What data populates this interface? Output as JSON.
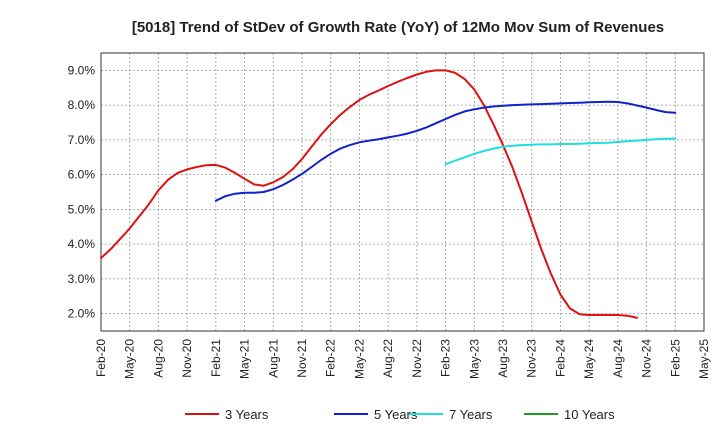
{
  "chart_data": {
    "type": "line",
    "title": "[5018]  Trend of StDev of Growth Rate (YoY) of 12Mo Mov Sum of Revenues",
    "xlabel": "",
    "ylabel": "",
    "x_tick_labels": [
      "Feb-20",
      "May-20",
      "Aug-20",
      "Nov-20",
      "Feb-21",
      "May-21",
      "Aug-21",
      "Nov-21",
      "Feb-22",
      "May-22",
      "Aug-22",
      "Nov-22",
      "Feb-23",
      "May-23",
      "Aug-23",
      "Nov-23",
      "Feb-24",
      "May-24",
      "Aug-24",
      "Nov-24",
      "Feb-25",
      "May-25"
    ],
    "y_tick_labels": [
      "2.0%",
      "3.0%",
      "4.0%",
      "5.0%",
      "6.0%",
      "7.0%",
      "8.0%",
      "9.0%"
    ],
    "y_tick_values": [
      2,
      3,
      4,
      5,
      6,
      7,
      8,
      9
    ],
    "ylim": [
      1.5,
      9.5
    ],
    "x_range_months": [
      0,
      63
    ],
    "grid": true,
    "legend_position": "bottom",
    "series": [
      {
        "name": "3 Years",
        "color": "#dd1111",
        "x": [
          0,
          1,
          2,
          3,
          4,
          5,
          6,
          7,
          8,
          9,
          10,
          11,
          12,
          13,
          14,
          15,
          16,
          17,
          18,
          19,
          20,
          21,
          22,
          23,
          24,
          25,
          26,
          27,
          28,
          29,
          30,
          31,
          32,
          33,
          34,
          35,
          36,
          37,
          38,
          39,
          40,
          41,
          42,
          43,
          44,
          45,
          46,
          47,
          48,
          49,
          50,
          51,
          52,
          53,
          54,
          55,
          56,
          57,
          58,
          59,
          60
        ],
        "values": [
          3.6,
          3.85,
          4.15,
          4.45,
          4.8,
          5.15,
          5.55,
          5.85,
          6.05,
          6.15,
          6.22,
          6.27,
          6.28,
          6.2,
          6.05,
          5.88,
          5.72,
          5.68,
          5.78,
          5.93,
          6.15,
          6.45,
          6.8,
          7.15,
          7.45,
          7.72,
          7.95,
          8.15,
          8.3,
          8.42,
          8.55,
          8.67,
          8.78,
          8.88,
          8.96,
          9.0,
          9.0,
          8.93,
          8.75,
          8.45,
          8.0,
          7.45,
          6.85,
          6.2,
          5.45,
          4.65,
          3.85,
          3.15,
          2.55,
          2.15,
          1.98,
          1.96,
          1.96,
          1.96,
          1.96,
          1.94,
          1.88,
          null,
          null,
          null,
          null
        ]
      },
      {
        "name": "5 Years",
        "color": "#1122cc",
        "x": [
          12,
          13,
          14,
          15,
          16,
          17,
          18,
          19,
          20,
          21,
          22,
          23,
          24,
          25,
          26,
          27,
          28,
          29,
          30,
          31,
          32,
          33,
          34,
          35,
          36,
          37,
          38,
          39,
          40,
          41,
          42,
          43,
          44,
          45,
          46,
          47,
          48,
          49,
          50,
          51,
          52,
          53,
          54,
          55,
          56,
          57,
          58,
          59,
          60
        ],
        "values": [
          5.25,
          5.38,
          5.45,
          5.48,
          5.48,
          5.5,
          5.58,
          5.7,
          5.85,
          6.02,
          6.22,
          6.42,
          6.6,
          6.75,
          6.85,
          6.93,
          6.98,
          7.02,
          7.07,
          7.12,
          7.18,
          7.26,
          7.36,
          7.48,
          7.6,
          7.72,
          7.82,
          7.88,
          7.93,
          7.96,
          7.98,
          8.0,
          8.01,
          8.02,
          8.03,
          8.04,
          8.05,
          8.06,
          8.07,
          8.08,
          8.09,
          8.1,
          8.09,
          8.05,
          7.99,
          7.93,
          7.86,
          7.8,
          7.78
        ]
      },
      {
        "name": "7 Years",
        "color": "#22dddd",
        "x": [
          36,
          37,
          38,
          39,
          40,
          41,
          42,
          43,
          44,
          45,
          46,
          47,
          48,
          49,
          50,
          51,
          52,
          53,
          54,
          55,
          56,
          57,
          58,
          59,
          60
        ],
        "values": [
          6.3,
          6.4,
          6.5,
          6.6,
          6.68,
          6.75,
          6.8,
          6.83,
          6.85,
          6.86,
          6.87,
          6.87,
          6.88,
          6.88,
          6.89,
          6.9,
          6.91,
          6.92,
          6.94,
          6.96,
          6.98,
          7.0,
          7.02,
          7.03,
          7.04
        ]
      },
      {
        "name": "10 Years",
        "color": "#229922",
        "x": [],
        "values": []
      }
    ]
  }
}
